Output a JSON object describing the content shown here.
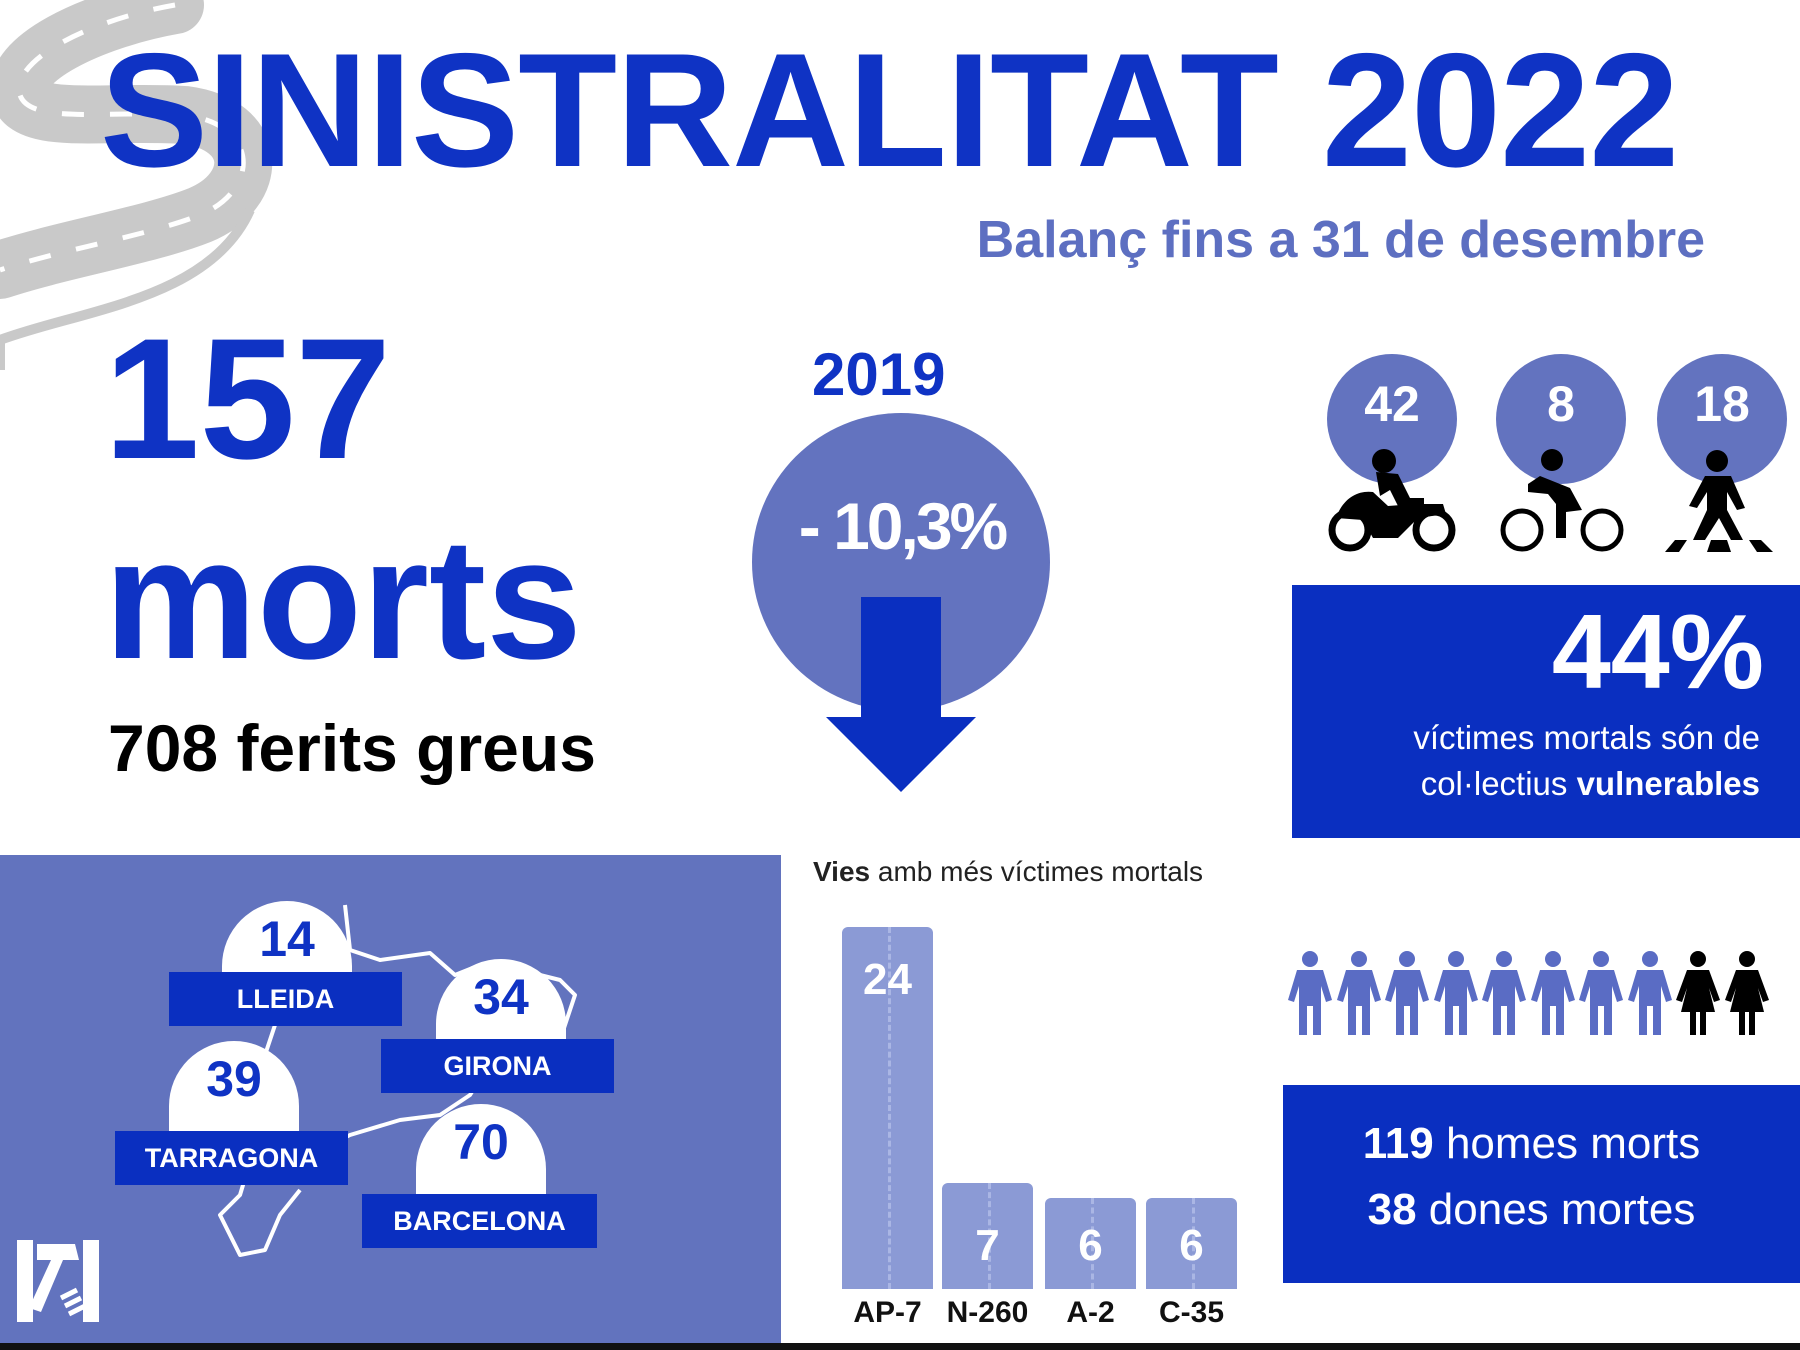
{
  "header": {
    "title": "SINISTRALITAT 2022",
    "subtitle": "Balanç fins a 31 de desembre"
  },
  "totals": {
    "deaths_number": "157",
    "deaths_label": "morts",
    "serious_injuries": "708 ferits greus"
  },
  "comparison": {
    "year": "2019",
    "change": "- 10,3%"
  },
  "vulnerable": {
    "groups": [
      {
        "name": "motorcycle",
        "value": "42",
        "icon": "motorcycle-icon"
      },
      {
        "name": "bicycle",
        "value": "8",
        "icon": "bicycle-icon"
      },
      {
        "name": "pedestrian",
        "value": "18",
        "icon": "pedestrian-icon"
      }
    ],
    "percent": "44%",
    "line1": "víctimes mortals són de",
    "line2_regular": "col·lectius ",
    "line2_bold": "vulnerables"
  },
  "provinces": [
    {
      "name": "LLEIDA",
      "value": "14"
    },
    {
      "name": "GIRONA",
      "value": "34"
    },
    {
      "name": "TARRAGONA",
      "value": "39"
    },
    {
      "name": "BARCELONA",
      "value": "70"
    }
  ],
  "chart_data": {
    "type": "bar",
    "title_bold": "Vies",
    "title_rest": " amb més víctimes mortals",
    "categories": [
      "AP-7",
      "N-260",
      "A-2",
      "C-35"
    ],
    "values": [
      24,
      7,
      6,
      6
    ],
    "value_labels": [
      "24",
      "7",
      "6",
      "6"
    ],
    "ylim": [
      0,
      24
    ]
  },
  "gender": {
    "men_icons": 8,
    "women_icons": 2,
    "men_number": "119",
    "men_text": " homes morts",
    "women_number": "38",
    "women_text": " dones mortes"
  },
  "colors": {
    "primary": "#0a2fc0",
    "secondary": "#6273be",
    "bar": "#8b9ad5",
    "road": "#c9c9c9"
  }
}
